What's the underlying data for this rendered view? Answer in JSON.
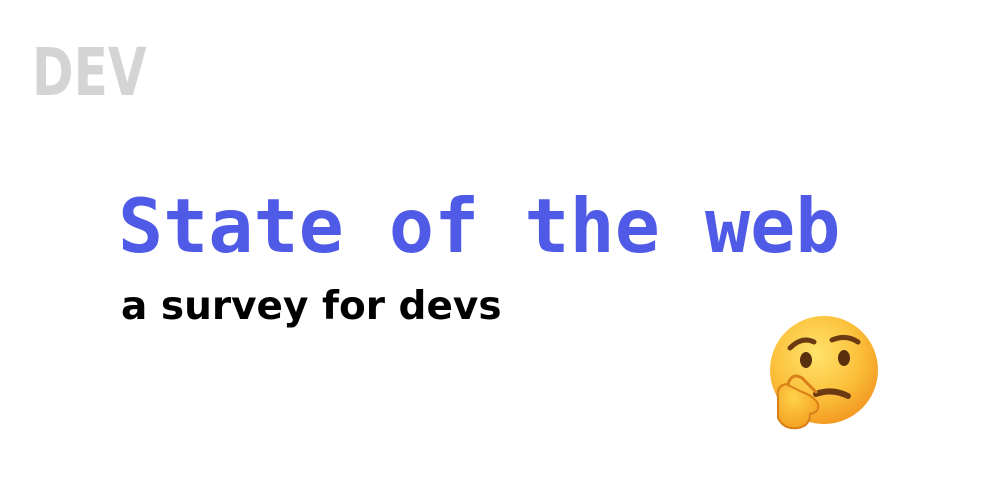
{
  "brand": {
    "logo_text": "DEV"
  },
  "hero": {
    "title": "State of the web",
    "subtitle": "a survey for devs"
  },
  "icons": {
    "emoji": "thinking-face-icon"
  },
  "colors": {
    "logo": "#d4d4d4",
    "title": "#4f5be6",
    "subtitle": "#000000",
    "background": "#ffffff",
    "emoji_face": "#fbbf3a"
  }
}
